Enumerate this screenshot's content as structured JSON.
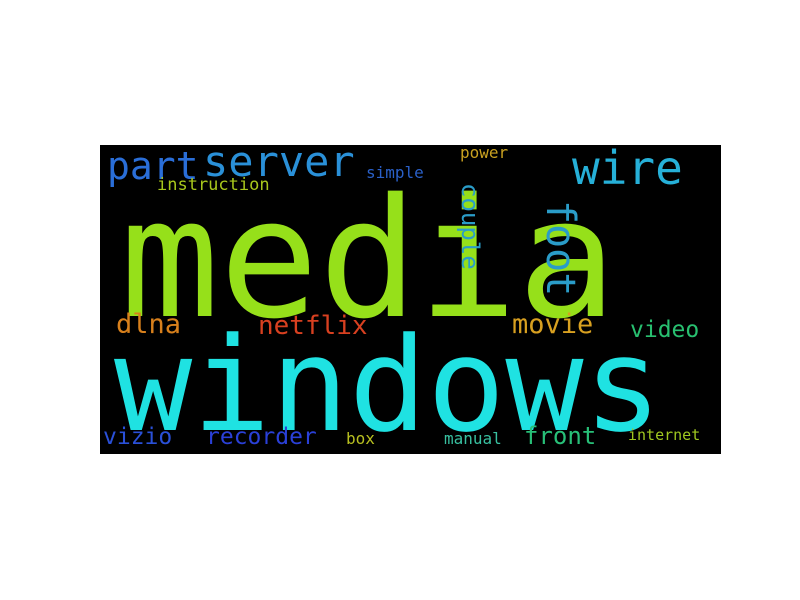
{
  "wordcloud": {
    "words": [
      {
        "text": "media",
        "color": "#96e01a"
      },
      {
        "text": "windows",
        "color": "#1fe2e2"
      },
      {
        "text": "server",
        "color": "#2a90d8"
      },
      {
        "text": "part",
        "color": "#2a6ed8"
      },
      {
        "text": "wire",
        "color": "#26b0d8"
      },
      {
        "text": "foot",
        "color": "#2a9cc8"
      },
      {
        "text": "couple",
        "color": "#2a9cc8"
      },
      {
        "text": "instruction",
        "color": "#a8c71c"
      },
      {
        "text": "simple",
        "color": "#2a60c8"
      },
      {
        "text": "power",
        "color": "#c8a020"
      },
      {
        "text": "dlna",
        "color": "#d8801c"
      },
      {
        "text": "netflix",
        "color": "#d84020"
      },
      {
        "text": "movie",
        "color": "#d8a020"
      },
      {
        "text": "video",
        "color": "#28c070"
      },
      {
        "text": "vizio",
        "color": "#2a50d8"
      },
      {
        "text": "recorder",
        "color": "#2a40d8"
      },
      {
        "text": "box",
        "color": "#b8c020"
      },
      {
        "text": "manual",
        "color": "#38c0a0"
      },
      {
        "text": "front",
        "color": "#28c078"
      },
      {
        "text": "internet",
        "color": "#a0c820"
      }
    ]
  }
}
